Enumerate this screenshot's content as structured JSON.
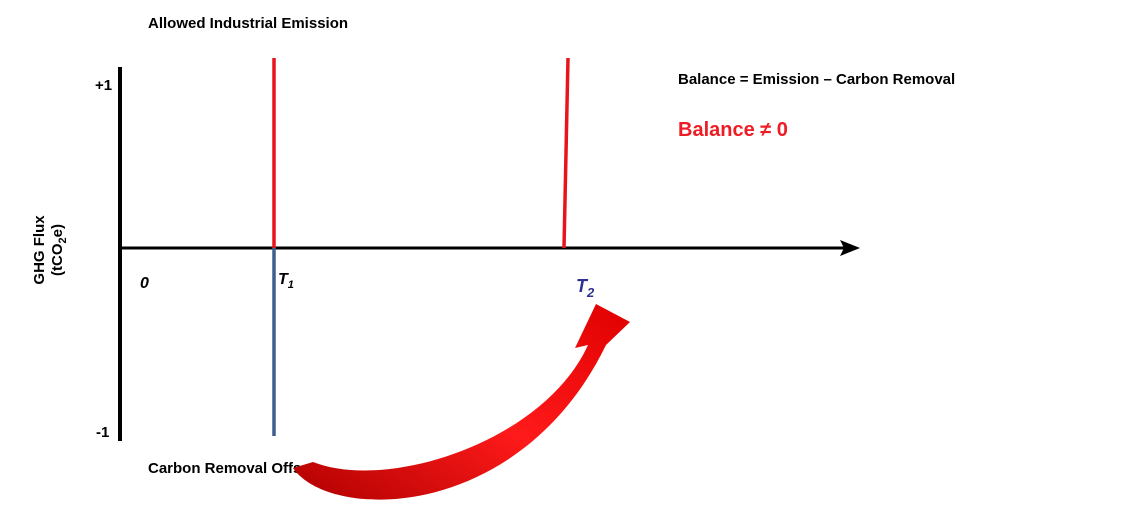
{
  "title": "Allowed Industrial Emission",
  "y_axis": {
    "top_label": "+1",
    "bottom_label": "-1",
    "label_line1": "GHG Flux",
    "label_line2_pre": "(tCO",
    "label_line2_sub": "2",
    "label_line2_post": "e)"
  },
  "x_axis": {
    "origin_label": "0",
    "t1": {
      "text": "T",
      "sub": "1"
    },
    "t2": {
      "text": "T",
      "sub": "2"
    }
  },
  "equation": "Balance = Emission – Carbon Removal",
  "balance": "Balance ≠ 0",
  "bottom_label": "Carbon Removal Offset"
}
